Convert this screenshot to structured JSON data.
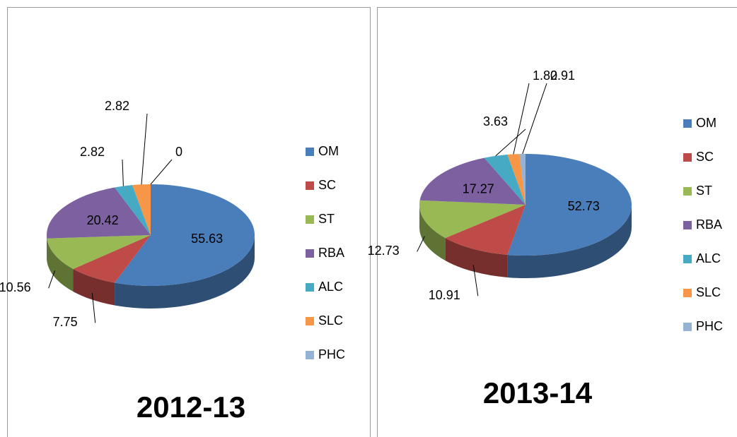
{
  "chart_data": [
    {
      "type": "pie",
      "title": "2012-13",
      "categories": [
        "OM",
        "SC",
        "ST",
        "RBA",
        "ALC",
        "SLC",
        "PHC"
      ],
      "values": [
        55.63,
        7.75,
        10.56,
        20.42,
        2.82,
        2.82,
        0
      ],
      "colors": [
        "#4a7ebb",
        "#be4b48",
        "#98b954",
        "#7d60a0",
        "#46aac5",
        "#f79646",
        "#95b3d7"
      ]
    },
    {
      "type": "pie",
      "title": "2013-14",
      "categories": [
        "OM",
        "SC",
        "ST",
        "RBA",
        "ALC",
        "SLC",
        "PHC"
      ],
      "values": [
        52.73,
        10.91,
        12.73,
        17.27,
        3.63,
        1.82,
        0.91
      ],
      "colors": [
        "#4a7ebb",
        "#be4b48",
        "#98b954",
        "#7d60a0",
        "#46aac5",
        "#f79646",
        "#95b3d7"
      ]
    }
  ]
}
